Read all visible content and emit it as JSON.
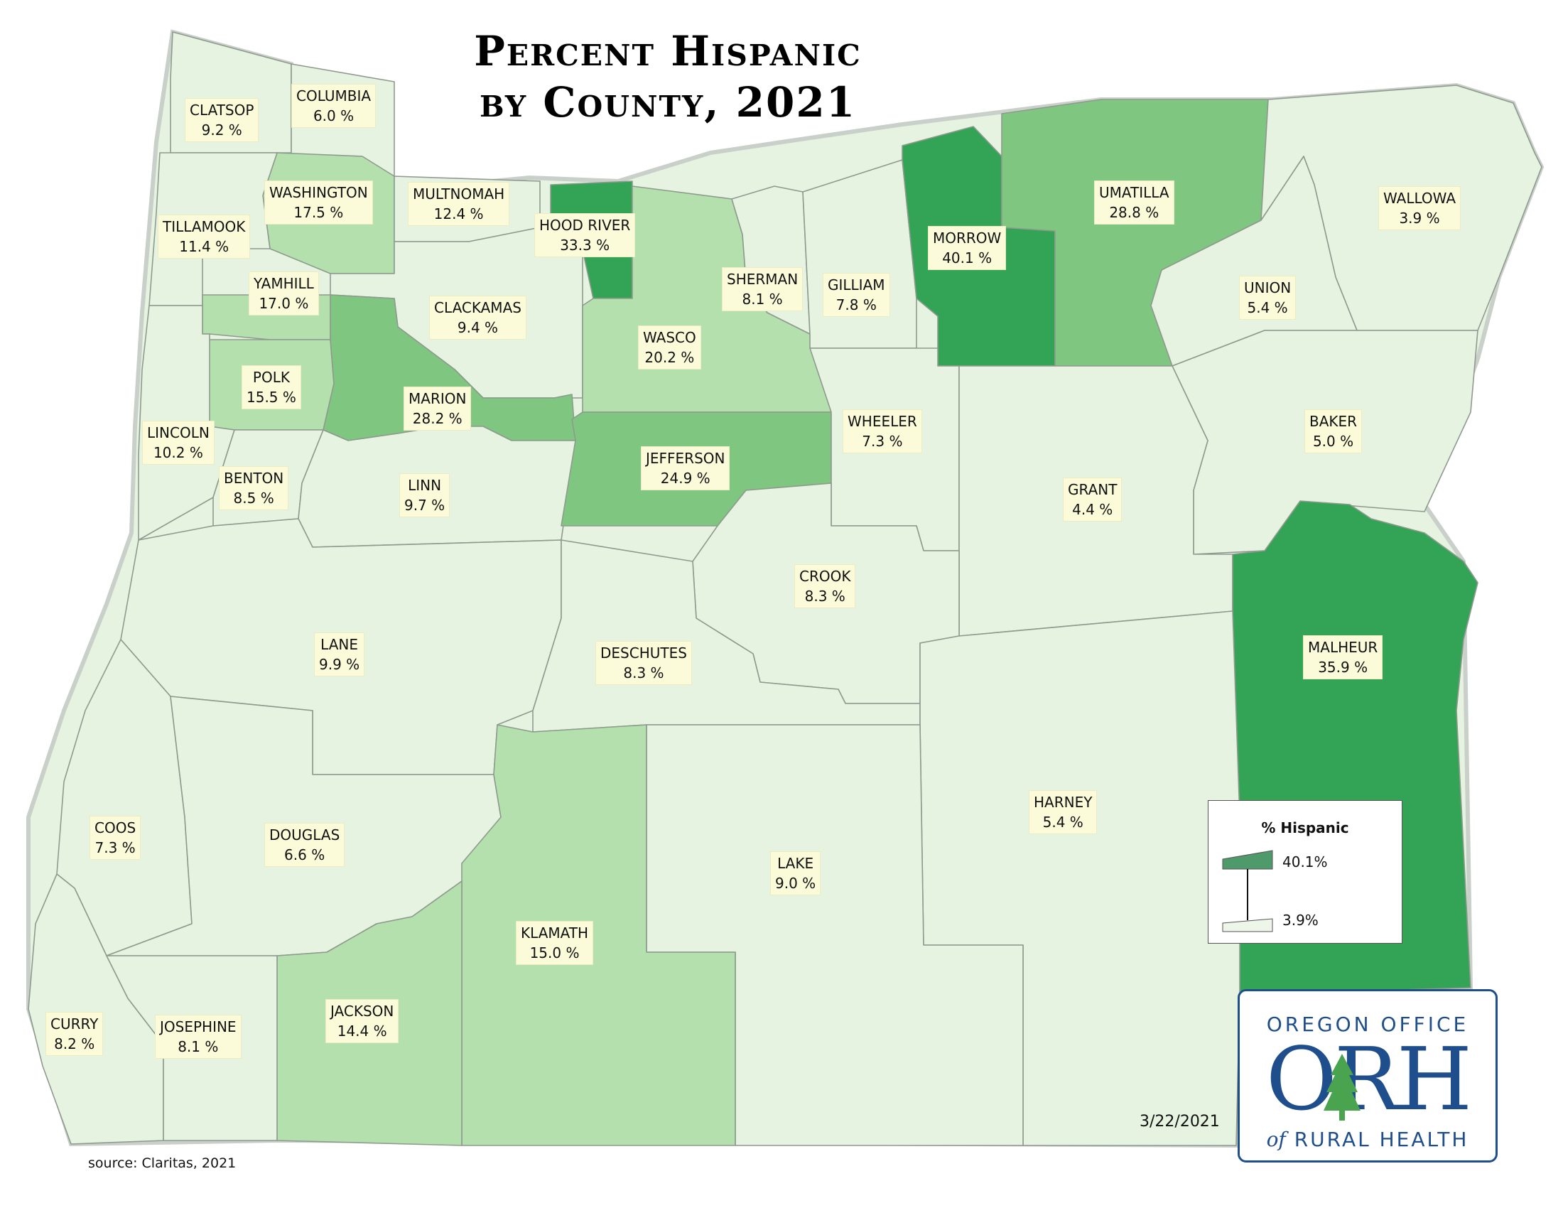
{
  "title": {
    "line1": "Percent Hispanic",
    "line2": "by County, 2021"
  },
  "colors": {
    "level1": "#e6f3e1",
    "level2": "#b4e0ae",
    "level3": "#7fc681",
    "level4": "#33a456",
    "border": "#8f9a8f",
    "label_bg": "#fbfbd9",
    "logo_blue": "#1f4e8c"
  },
  "counties": [
    {
      "name": "CLATSOP",
      "value": "9.2 %",
      "pct": 9.2
    },
    {
      "name": "COLUMBIA",
      "value": "6.0 %",
      "pct": 6.0
    },
    {
      "name": "WASHINGTON",
      "value": "17.5 %",
      "pct": 17.5
    },
    {
      "name": "MULTNOMAH",
      "value": "12.4 %",
      "pct": 12.4
    },
    {
      "name": "HOOD RIVER",
      "value": "33.3 %",
      "pct": 33.3
    },
    {
      "name": "TILLAMOOK",
      "value": "11.4 %",
      "pct": 11.4
    },
    {
      "name": "YAMHILL",
      "value": "17.0 %",
      "pct": 17.0
    },
    {
      "name": "CLACKAMAS",
      "value": "9.4 %",
      "pct": 9.4
    },
    {
      "name": "SHERMAN",
      "value": "8.1 %",
      "pct": 8.1
    },
    {
      "name": "GILLIAM",
      "value": "7.8 %",
      "pct": 7.8
    },
    {
      "name": "MORROW",
      "value": "40.1 %",
      "pct": 40.1
    },
    {
      "name": "UMATILLA",
      "value": "28.8 %",
      "pct": 28.8
    },
    {
      "name": "WALLOWA",
      "value": "3.9 %",
      "pct": 3.9
    },
    {
      "name": "UNION",
      "value": "5.4 %",
      "pct": 5.4
    },
    {
      "name": "WASCO",
      "value": "20.2 %",
      "pct": 20.2
    },
    {
      "name": "POLK",
      "value": "15.5 %",
      "pct": 15.5
    },
    {
      "name": "MARION",
      "value": "28.2 %",
      "pct": 28.2
    },
    {
      "name": "LINCOLN",
      "value": "10.2 %",
      "pct": 10.2
    },
    {
      "name": "BENTON",
      "value": "8.5 %",
      "pct": 8.5
    },
    {
      "name": "LINN",
      "value": "9.7 %",
      "pct": 9.7
    },
    {
      "name": "JEFFERSON",
      "value": "24.9 %",
      "pct": 24.9
    },
    {
      "name": "WHEELER",
      "value": "7.3 %",
      "pct": 7.3
    },
    {
      "name": "BAKER",
      "value": "5.0 %",
      "pct": 5.0
    },
    {
      "name": "GRANT",
      "value": "4.4 %",
      "pct": 4.4
    },
    {
      "name": "CROOK",
      "value": "8.3 %",
      "pct": 8.3
    },
    {
      "name": "LANE",
      "value": "9.9 %",
      "pct": 9.9
    },
    {
      "name": "DESCHUTES",
      "value": "8.3 %",
      "pct": 8.3
    },
    {
      "name": "MALHEUR",
      "value": "35.9 %",
      "pct": 35.9
    },
    {
      "name": "HARNEY",
      "value": "5.4 %",
      "pct": 5.4
    },
    {
      "name": "COOS",
      "value": "7.3 %",
      "pct": 7.3
    },
    {
      "name": "DOUGLAS",
      "value": "6.6 %",
      "pct": 6.6
    },
    {
      "name": "LAKE",
      "value": "9.0 %",
      "pct": 9.0
    },
    {
      "name": "KLAMATH",
      "value": "15.0 %",
      "pct": 15.0
    },
    {
      "name": "JACKSON",
      "value": "14.4 %",
      "pct": 14.4
    },
    {
      "name": "CURRY",
      "value": "8.2 %",
      "pct": 8.2
    },
    {
      "name": "JOSEPHINE",
      "value": "8.1 %",
      "pct": 8.1
    }
  ],
  "legend": {
    "title": "% Hispanic",
    "max_label": "40.1%",
    "min_label": "3.9%"
  },
  "logo": {
    "line1": "OREGON OFFICE",
    "main": "ORH",
    "line2_prefix": "of",
    "line2": "RURAL HEALTH"
  },
  "date": "3/22/2021",
  "source": "source: Claritas, 2021"
}
